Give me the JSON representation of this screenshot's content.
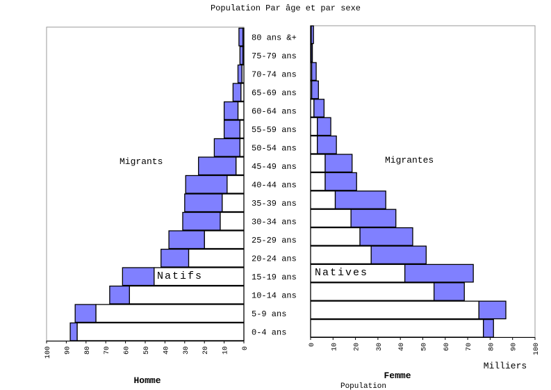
{
  "chart_data": {
    "type": "bar",
    "subtype": "population-pyramid",
    "title": "Population Par âge et par sexe",
    "left_panel": {
      "xlabel": "Homme",
      "xlim": [
        0,
        100
      ],
      "ticks": [
        "100",
        "90",
        "80",
        "70",
        "60",
        "50",
        "40",
        "30",
        "20",
        "10",
        "0"
      ],
      "annotations": [
        "Migrants",
        "Natifs"
      ]
    },
    "right_panel": {
      "xlabel": "Femme",
      "unit_label": "Milliers",
      "xlim": [
        0,
        100
      ],
      "ticks": [
        "0",
        "10",
        "20",
        "30",
        "40",
        "50",
        "60",
        "70",
        "80",
        "90",
        "100"
      ],
      "annotations": [
        "Migrantes",
        "Natives"
      ]
    },
    "bottom_label": "Population",
    "categories": [
      "0-4 ans",
      "5-9 ans",
      "10-14 ans",
      "15-19 ans",
      "20-24 ans",
      "25-29 ans",
      "30-34 ans",
      "35-39 ans",
      "40-44 ans",
      "45-49 ans",
      "50-54 ans",
      "55-59 ans",
      "60-64 ans",
      "65-69 ans",
      "70-74 ans",
      "75-79 ans",
      "80 ans &+"
    ],
    "series": [
      {
        "name": "Natifs",
        "side": "left",
        "color": "#ffffff",
        "values": [
          84.5,
          75,
          58,
          45.5,
          28,
          20,
          12,
          11,
          8.5,
          4,
          2,
          2,
          3,
          1.5,
          1,
          0.5,
          0.5
        ]
      },
      {
        "name": "Migrants",
        "side": "left",
        "color": "#8080ff",
        "values": [
          3.5,
          10.5,
          10,
          16,
          14,
          18,
          19,
          19,
          21,
          19,
          13,
          8,
          7,
          4,
          2,
          1.5,
          2
        ]
      },
      {
        "name": "Natives",
        "side": "right",
        "color": "#ffffff",
        "values": [
          77,
          75,
          55,
          42,
          27,
          22,
          18,
          11,
          6.5,
          6.5,
          3,
          3,
          1.5,
          0.5,
          0.5,
          0.3,
          0.3
        ]
      },
      {
        "name": "Migrantes",
        "side": "right",
        "color": "#8080ff",
        "values": [
          4.5,
          12,
          13.5,
          30.5,
          24.5,
          23.5,
          20,
          22.5,
          14,
          12,
          8.5,
          6,
          4.5,
          3,
          2,
          0.5,
          1
        ]
      }
    ]
  }
}
